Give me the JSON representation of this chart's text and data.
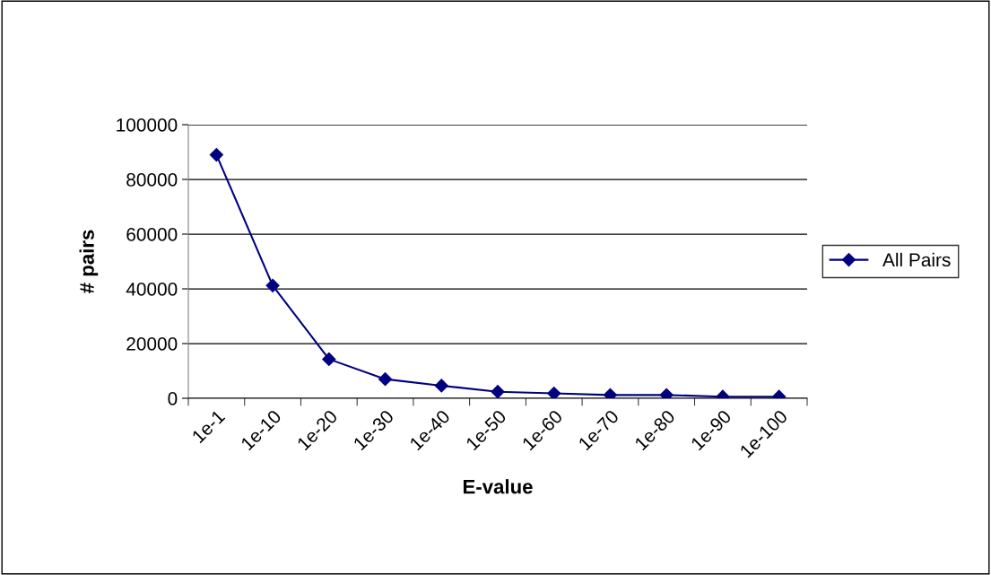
{
  "chart_data": {
    "type": "line",
    "xlabel": "E-value",
    "ylabel": "# pairs",
    "categories": [
      "1e-1",
      "1e-10",
      "1e-20",
      "1e-30",
      "1e-40",
      "1e-50",
      "1e-60",
      "1e-70",
      "1e-80",
      "1e-90",
      "1e-100"
    ],
    "series": [
      {
        "name": "All Pairs",
        "color": "#000080",
        "values": [
          89000,
          41200,
          14300,
          7000,
          4600,
          2400,
          1800,
          1200,
          1200,
          600,
          600
        ]
      }
    ],
    "ylim": [
      0,
      100000
    ],
    "yticks": [
      0,
      20000,
      40000,
      60000,
      80000,
      100000
    ],
    "grid": "y",
    "legend": "right",
    "marker": "diamond",
    "line_style": "solid"
  }
}
